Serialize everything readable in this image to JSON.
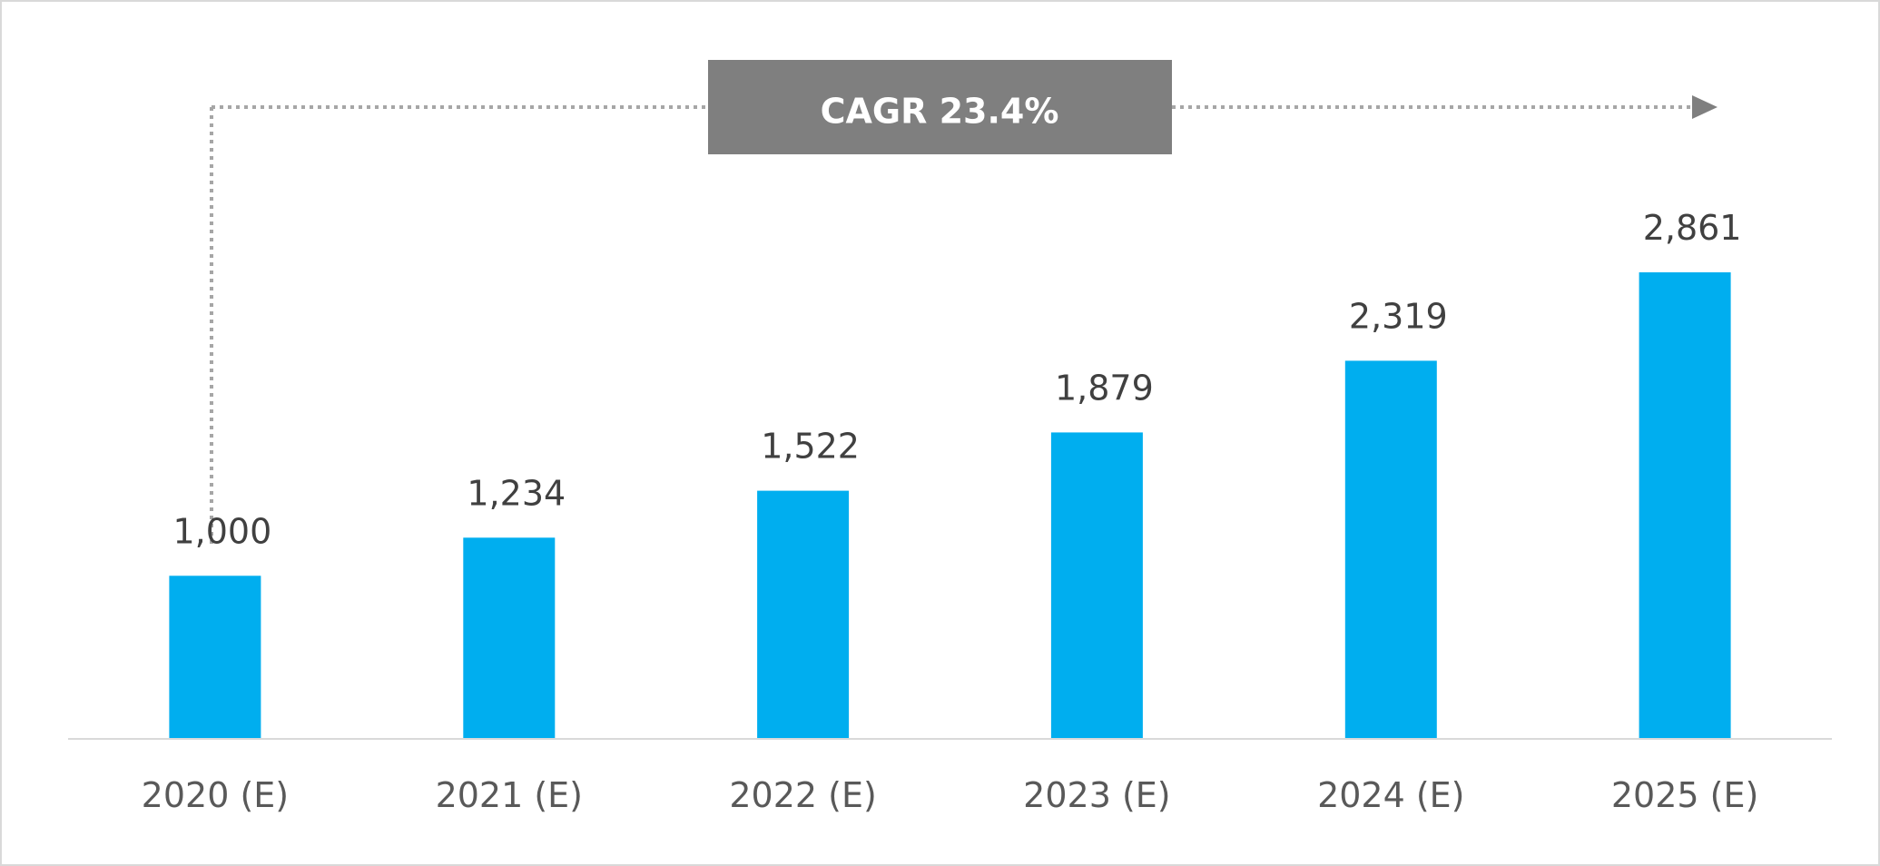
{
  "chart_data": {
    "type": "bar",
    "categories": [
      "2020 (E)",
      "2021 (E)",
      "2022 (E)",
      "2023 (E)",
      "2024 (E)",
      "2025 (E)"
    ],
    "values": [
      1000,
      1234,
      1522,
      1879,
      2319,
      2861
    ],
    "value_labels": [
      "1,000",
      "1,234",
      "1,522",
      "1,879",
      "2,319",
      "2,861"
    ],
    "title": "",
    "xlabel": "",
    "ylabel": "",
    "ylim": [
      0,
      2861
    ],
    "grid": false,
    "bar_color": "#00AEEF",
    "annotation": {
      "text": "CAGR 23.4%",
      "box_color": "#7F7F7F",
      "arrow_color": "#A6A6A6"
    }
  }
}
